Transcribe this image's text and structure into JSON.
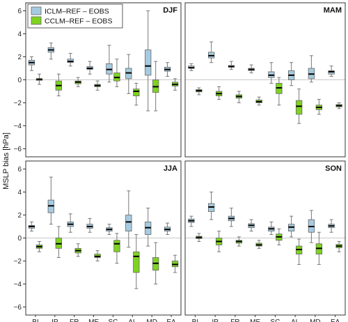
{
  "chart_data": {
    "type": "boxplot",
    "ylabel": "MSLP bias [hPa]",
    "ylim": [
      -6.7,
      6.7
    ],
    "yticks": [
      -6,
      -4,
      -2,
      0,
      2,
      4,
      6
    ],
    "categories": [
      "BI",
      "IP",
      "FR",
      "ME",
      "SC",
      "AL",
      "MD",
      "EA"
    ],
    "colors": {
      "ICLM–REF – EOBS": "#a6cbe0",
      "CCLM–REF – EOBS": "#7ed321"
    },
    "legend": {
      "position": "top-left",
      "entries": [
        "ICLM–REF – EOBS",
        "CCLM–REF – EOBS"
      ]
    },
    "panels": [
      {
        "title": "DJF",
        "series": [
          {
            "name": "ICLM–REF – EOBS",
            "boxes": [
              {
                "whislo": 0.8,
                "q1": 1.3,
                "med": 1.5,
                "q3": 1.7,
                "whishi": 2.0
              },
              {
                "whislo": 1.8,
                "q1": 2.4,
                "med": 2.6,
                "q3": 2.8,
                "whishi": 3.2
              },
              {
                "whislo": 1.2,
                "q1": 1.5,
                "med": 1.6,
                "q3": 1.8,
                "whishi": 2.3
              },
              {
                "whislo": 0.5,
                "q1": 0.9,
                "med": 1.0,
                "q3": 1.15,
                "whishi": 1.6
              },
              {
                "whislo": -0.2,
                "q1": 0.5,
                "med": 0.9,
                "q3": 1.4,
                "whishi": 3.0
              },
              {
                "whislo": -1.2,
                "q1": 0.1,
                "med": 0.6,
                "q3": 1.0,
                "whishi": 2.2
              },
              {
                "whislo": -2.7,
                "q1": 0.4,
                "med": 1.2,
                "q3": 2.6,
                "whishi": 6.0
              },
              {
                "whislo": 0.3,
                "q1": 0.75,
                "med": 0.9,
                "q3": 1.1,
                "whishi": 1.5
              }
            ]
          },
          {
            "name": "CCLM–REF – EOBS",
            "boxes": [
              {
                "whislo": -0.4,
                "q1": -0.05,
                "med": 0.05,
                "q3": 0.1,
                "whishi": 0.5
              },
              {
                "whislo": -1.4,
                "q1": -0.9,
                "med": -0.5,
                "q3": -0.1,
                "whishi": 0.5
              },
              {
                "whislo": -0.6,
                "q1": -0.35,
                "med": -0.2,
                "q3": -0.1,
                "whishi": 0.2
              },
              {
                "whislo": -0.9,
                "q1": -0.6,
                "med": -0.5,
                "q3": -0.4,
                "whishi": -0.1
              },
              {
                "whislo": -0.6,
                "q1": -0.1,
                "med": 0.2,
                "q3": 0.6,
                "whishi": 1.8
              },
              {
                "whislo": -2.2,
                "q1": -1.4,
                "med": -1.0,
                "q3": -0.8,
                "whishi": -0.3
              },
              {
                "whislo": -2.7,
                "q1": -1.1,
                "med": -0.6,
                "q3": 0.0,
                "whishi": 1.6
              },
              {
                "whislo": -0.9,
                "q1": -0.55,
                "med": -0.4,
                "q3": -0.2,
                "whishi": 0.1
              }
            ]
          }
        ]
      },
      {
        "title": "MAM",
        "series": [
          {
            "name": "ICLM–REF – EOBS",
            "boxes": [
              {
                "whislo": 0.8,
                "q1": 1.0,
                "med": 1.05,
                "q3": 1.2,
                "whishi": 1.4
              },
              {
                "whislo": 1.5,
                "q1": 1.9,
                "med": 2.1,
                "q3": 2.4,
                "whishi": 3.3
              },
              {
                "whislo": 0.9,
                "q1": 1.1,
                "med": 1.15,
                "q3": 1.25,
                "whishi": 1.6
              },
              {
                "whislo": 0.6,
                "q1": 0.8,
                "med": 0.9,
                "q3": 1.0,
                "whishi": 1.3
              },
              {
                "whislo": -0.3,
                "q1": 0.2,
                "med": 0.4,
                "q3": 0.7,
                "whishi": 1.5
              },
              {
                "whislo": -0.5,
                "q1": 0.0,
                "med": 0.4,
                "q3": 0.8,
                "whishi": 1.5
              },
              {
                "whislo": -0.2,
                "q1": 0.1,
                "med": 0.5,
                "q3": 1.0,
                "whishi": 2.1
              },
              {
                "whislo": 0.3,
                "q1": 0.5,
                "med": 0.7,
                "q3": 0.8,
                "whishi": 1.2
              }
            ]
          },
          {
            "name": "CCLM–REF – EOBS",
            "boxes": [
              {
                "whislo": -1.3,
                "q1": -1.05,
                "med": -0.95,
                "q3": -0.85,
                "whishi": -0.7
              },
              {
                "whislo": -1.7,
                "q1": -1.4,
                "med": -1.2,
                "q3": -1.0,
                "whishi": -0.6
              },
              {
                "whislo": -2.0,
                "q1": -1.6,
                "med": -1.45,
                "q3": -1.3,
                "whishi": -1.0
              },
              {
                "whislo": -2.2,
                "q1": -2.0,
                "med": -1.9,
                "q3": -1.75,
                "whishi": -1.5
              },
              {
                "whislo": -2.2,
                "q1": -1.2,
                "med": -0.7,
                "q3": -0.3,
                "whishi": 0.2
              },
              {
                "whislo": -3.8,
                "q1": -3.0,
                "med": -2.3,
                "q3": -1.8,
                "whishi": -0.8
              },
              {
                "whislo": -3.0,
                "q1": -2.6,
                "med": -2.4,
                "q3": -2.2,
                "whishi": -1.7
              },
              {
                "whislo": -2.5,
                "q1": -2.35,
                "med": -2.25,
                "q3": -2.15,
                "whishi": -2.0
              }
            ]
          }
        ]
      },
      {
        "title": "JJA",
        "series": [
          {
            "name": "ICLM–REF – EOBS",
            "boxes": [
              {
                "whislo": 0.6,
                "q1": 0.85,
                "med": 1.0,
                "q3": 1.1,
                "whishi": 1.4
              },
              {
                "whislo": 1.2,
                "q1": 2.2,
                "med": 2.8,
                "q3": 3.3,
                "whishi": 5.3
              },
              {
                "whislo": 0.5,
                "q1": 1.0,
                "med": 1.2,
                "q3": 1.4,
                "whishi": 2.1
              },
              {
                "whislo": 0.5,
                "q1": 0.85,
                "med": 1.0,
                "q3": 1.2,
                "whishi": 1.7
              },
              {
                "whislo": 0.3,
                "q1": 0.6,
                "med": 0.75,
                "q3": 0.9,
                "whishi": 1.2
              },
              {
                "whislo": -0.8,
                "q1": 0.6,
                "med": 1.4,
                "q3": 2.0,
                "whishi": 4.1
              },
              {
                "whislo": -0.7,
                "q1": 0.3,
                "med": 0.9,
                "q3": 1.4,
                "whishi": 2.6
              },
              {
                "whislo": 0.3,
                "q1": 0.6,
                "med": 0.75,
                "q3": 0.95,
                "whishi": 1.3
              }
            ]
          },
          {
            "name": "CCLM–REF – EOBS",
            "boxes": [
              {
                "whislo": -1.2,
                "q1": -0.9,
                "med": -0.75,
                "q3": -0.6,
                "whishi": -0.3
              },
              {
                "whislo": -1.7,
                "q1": -0.9,
                "med": -0.5,
                "q3": 0.0,
                "whishi": 1.0
              },
              {
                "whislo": -1.6,
                "q1": -1.3,
                "med": -1.1,
                "q3": -0.9,
                "whishi": -0.5
              },
              {
                "whislo": -2.0,
                "q1": -1.7,
                "med": -1.6,
                "q3": -1.4,
                "whishi": -1.1
              },
              {
                "whislo": -2.2,
                "q1": -1.2,
                "med": -0.5,
                "q3": -0.2,
                "whishi": 0.4
              },
              {
                "whislo": -4.4,
                "q1": -3.0,
                "med": -1.6,
                "q3": -1.2,
                "whishi": 0.3
              },
              {
                "whislo": -4.0,
                "q1": -2.8,
                "med": -2.2,
                "q3": -1.7,
                "whishi": -0.4
              },
              {
                "whislo": -3.0,
                "q1": -2.5,
                "med": -2.3,
                "q3": -2.0,
                "whishi": -1.5
              }
            ]
          }
        ]
      },
      {
        "title": "SON",
        "series": [
          {
            "name": "ICLM–REF – EOBS",
            "boxes": [
              {
                "whislo": 1.0,
                "q1": 1.35,
                "med": 1.5,
                "q3": 1.65,
                "whishi": 1.9
              },
              {
                "whislo": 1.6,
                "q1": 2.3,
                "med": 2.7,
                "q3": 3.0,
                "whishi": 4.0
              },
              {
                "whislo": 1.0,
                "q1": 1.5,
                "med": 1.7,
                "q3": 1.9,
                "whishi": 2.6
              },
              {
                "whislo": 0.6,
                "q1": 0.9,
                "med": 1.1,
                "q3": 1.25,
                "whishi": 1.6
              },
              {
                "whislo": 0.3,
                "q1": 0.6,
                "med": 0.8,
                "q3": 0.95,
                "whishi": 1.4
              },
              {
                "whislo": 0.1,
                "q1": 0.6,
                "med": 0.95,
                "q3": 1.2,
                "whishi": 1.9
              },
              {
                "whislo": -0.4,
                "q1": 0.5,
                "med": 1.0,
                "q3": 1.6,
                "whishi": 2.4
              },
              {
                "whislo": 0.5,
                "q1": 0.9,
                "med": 1.05,
                "q3": 1.2,
                "whishi": 1.6
              }
            ]
          },
          {
            "name": "CCLM–REF – EOBS",
            "boxes": [
              {
                "whislo": -0.3,
                "q1": -0.05,
                "med": 0.05,
                "q3": 0.15,
                "whishi": 0.4
              },
              {
                "whislo": -1.2,
                "q1": -0.6,
                "med": -0.3,
                "q3": 0.0,
                "whishi": 0.6
              },
              {
                "whislo": -0.7,
                "q1": -0.45,
                "med": -0.3,
                "q3": -0.2,
                "whishi": 0.1
              },
              {
                "whislo": -0.9,
                "q1": -0.7,
                "med": -0.6,
                "q3": -0.45,
                "whishi": -0.2
              },
              {
                "whislo": -0.6,
                "q1": -0.2,
                "med": 0.1,
                "q3": 0.35,
                "whishi": 0.8
              },
              {
                "whislo": -2.3,
                "q1": -1.4,
                "med": -1.0,
                "q3": -0.7,
                "whishi": -0.1
              },
              {
                "whislo": -2.3,
                "q1": -1.4,
                "med": -0.9,
                "q3": -0.5,
                "whishi": 0.5
              },
              {
                "whislo": -1.2,
                "q1": -0.85,
                "med": -0.7,
                "q3": -0.55,
                "whishi": -0.3
              }
            ]
          }
        ]
      }
    ]
  }
}
